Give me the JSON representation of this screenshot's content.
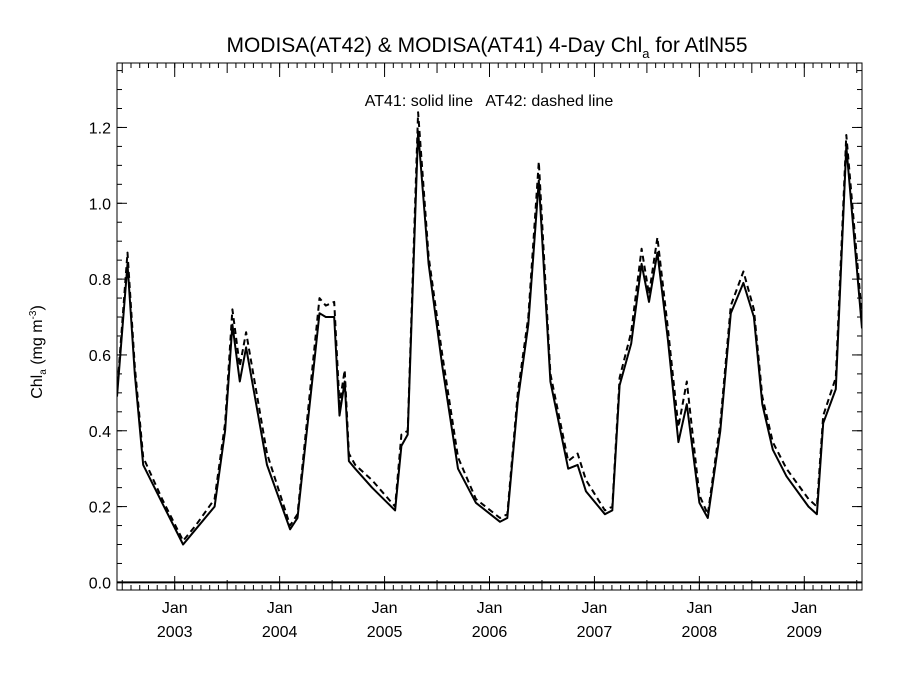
{
  "chart_data": {
    "type": "line",
    "title": {
      "main": "MODISA(AT42) & MODISA(AT41) 4-Day Chl",
      "sub": "a",
      "tail": " for AtlN55"
    },
    "annotation": "AT41: solid line   AT42: dashed line",
    "ylabel": {
      "main": "Chl",
      "sub": "a",
      "mid": " (mg m",
      "sup": "-3",
      "end": ")"
    },
    "ylim": [
      -0.02,
      1.37
    ],
    "yticks": [
      0.0,
      0.2,
      0.4,
      0.6,
      0.8,
      1.0,
      1.2
    ],
    "ytick_labels": [
      "0.0",
      "0.2",
      "0.4",
      "0.6",
      "0.8",
      "1.0",
      "1.2"
    ],
    "xlim": [
      2002.45,
      2009.55
    ],
    "x_ticks": [
      {
        "x": 2003.0,
        "top": "Jan",
        "bottom": "2003"
      },
      {
        "x": 2004.0,
        "top": "Jan",
        "bottom": "2004"
      },
      {
        "x": 2005.0,
        "top": "Jan",
        "bottom": "2005"
      },
      {
        "x": 2006.0,
        "top": "Jan",
        "bottom": "2006"
      },
      {
        "x": 2007.0,
        "top": "Jan",
        "bottom": "2007"
      },
      {
        "x": 2008.0,
        "top": "Jan",
        "bottom": "2008"
      },
      {
        "x": 2009.0,
        "top": "Jan",
        "bottom": "2009"
      }
    ],
    "grid": false,
    "series": [
      {
        "name": "AT41",
        "style": "solid",
        "color": "#000000",
        "x": [
          2002.45,
          2002.55,
          2002.62,
          2002.7,
          2002.88,
          2003.08,
          2003.2,
          2003.38,
          2003.48,
          2003.55,
          2003.62,
          2003.68,
          2003.88,
          2004.1,
          2004.17,
          2004.38,
          2004.44,
          2004.52,
          2004.57,
          2004.62,
          2004.66,
          2004.72,
          2004.88,
          2005.1,
          2005.16,
          2005.22,
          2005.32,
          2005.42,
          2005.55,
          2005.7,
          2005.87,
          2006.1,
          2006.17,
          2006.27,
          2006.37,
          2006.47,
          2006.58,
          2006.75,
          2006.84,
          2006.92,
          2007.1,
          2007.17,
          2007.24,
          2007.35,
          2007.45,
          2007.52,
          2007.6,
          2007.7,
          2007.8,
          2007.88,
          2008.0,
          2008.08,
          2008.2,
          2008.3,
          2008.42,
          2008.52,
          2008.6,
          2008.7,
          2008.83,
          2009.04,
          2009.12,
          2009.18,
          2009.3,
          2009.4,
          2009.55
        ],
        "values": [
          0.49,
          0.84,
          0.55,
          0.31,
          0.21,
          0.1,
          0.14,
          0.2,
          0.4,
          0.68,
          0.53,
          0.62,
          0.31,
          0.14,
          0.17,
          0.71,
          0.7,
          0.7,
          0.44,
          0.53,
          0.32,
          0.3,
          0.25,
          0.19,
          0.36,
          0.39,
          1.19,
          0.84,
          0.57,
          0.3,
          0.21,
          0.16,
          0.17,
          0.48,
          0.68,
          1.06,
          0.53,
          0.3,
          0.31,
          0.24,
          0.18,
          0.19,
          0.52,
          0.63,
          0.84,
          0.74,
          0.87,
          0.64,
          0.37,
          0.47,
          0.21,
          0.17,
          0.4,
          0.71,
          0.79,
          0.7,
          0.47,
          0.35,
          0.28,
          0.2,
          0.18,
          0.42,
          0.51,
          1.15,
          0.67
        ]
      },
      {
        "name": "AT42",
        "style": "dashed",
        "color": "#000000",
        "x": [
          2002.45,
          2002.55,
          2002.62,
          2002.7,
          2002.88,
          2003.08,
          2003.2,
          2003.38,
          2003.48,
          2003.55,
          2003.62,
          2003.68,
          2003.88,
          2004.1,
          2004.17,
          2004.38,
          2004.44,
          2004.52,
          2004.57,
          2004.62,
          2004.66,
          2004.72,
          2004.88,
          2005.1,
          2005.16,
          2005.22,
          2005.32,
          2005.42,
          2005.55,
          2005.7,
          2005.87,
          2006.1,
          2006.17,
          2006.27,
          2006.37,
          2006.47,
          2006.58,
          2006.75,
          2006.84,
          2006.92,
          2007.1,
          2007.17,
          2007.24,
          2007.35,
          2007.45,
          2007.52,
          2007.6,
          2007.7,
          2007.8,
          2007.88,
          2008.0,
          2008.08,
          2008.2,
          2008.3,
          2008.42,
          2008.52,
          2008.6,
          2008.7,
          2008.83,
          2009.04,
          2009.12,
          2009.18,
          2009.3,
          2009.4,
          2009.55
        ],
        "values": [
          0.5,
          0.87,
          0.57,
          0.33,
          0.22,
          0.11,
          0.15,
          0.22,
          0.42,
          0.72,
          0.57,
          0.66,
          0.34,
          0.15,
          0.18,
          0.75,
          0.73,
          0.74,
          0.47,
          0.56,
          0.34,
          0.31,
          0.27,
          0.2,
          0.39,
          0.4,
          1.24,
          0.86,
          0.6,
          0.33,
          0.22,
          0.17,
          0.18,
          0.5,
          0.7,
          1.11,
          0.55,
          0.32,
          0.34,
          0.27,
          0.19,
          0.2,
          0.54,
          0.66,
          0.88,
          0.76,
          0.91,
          0.67,
          0.41,
          0.53,
          0.23,
          0.18,
          0.42,
          0.73,
          0.82,
          0.72,
          0.49,
          0.37,
          0.3,
          0.22,
          0.2,
          0.44,
          0.54,
          1.18,
          0.7
        ]
      }
    ]
  }
}
